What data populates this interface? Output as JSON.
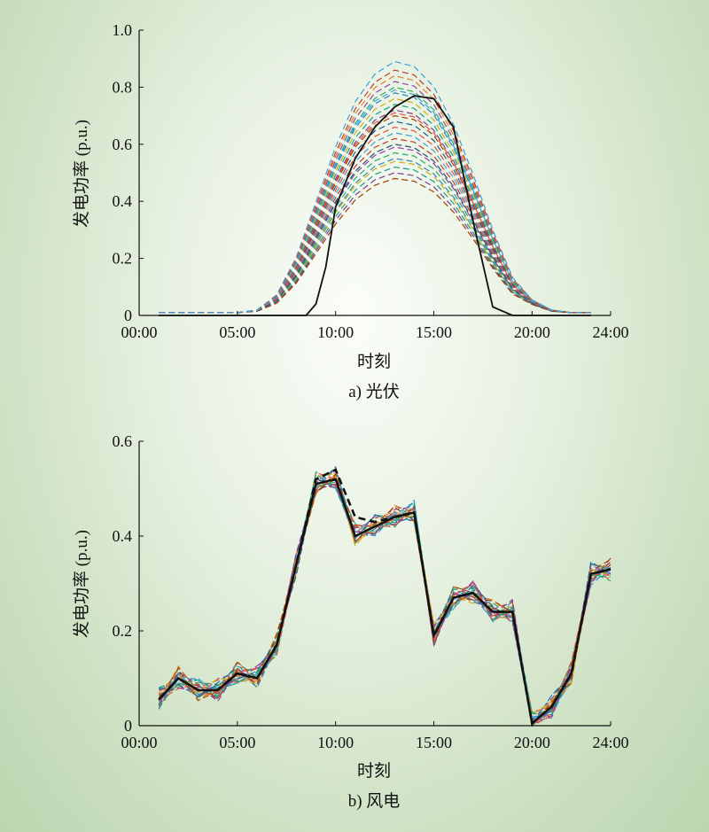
{
  "chart_data": [
    {
      "type": "line",
      "caption": "a) 光伏",
      "xlabel": "时刻",
      "ylabel": "发电功率 (p.u.)",
      "xlim": [
        0,
        24
      ],
      "ylim": [
        0,
        1.0
      ],
      "xticks": [
        0,
        5,
        10,
        15,
        20,
        24
      ],
      "xtick_labels": [
        "00:00",
        "05:00",
        "10:00",
        "15:00",
        "20:00",
        "24:00"
      ],
      "yticks": [
        0,
        0.2,
        0.4,
        0.6,
        0.8,
        1.0
      ],
      "ytick_labels": [
        "0",
        "0.2",
        "0.4",
        "0.6",
        "0.8",
        "1.0"
      ],
      "actual": {
        "x": [
          1,
          2,
          3,
          4,
          5,
          6,
          7,
          8,
          8.5,
          9,
          9.5,
          10,
          11,
          12,
          13,
          14,
          15,
          16,
          17,
          18,
          19,
          20,
          21,
          22,
          23
        ],
        "y": [
          0,
          0,
          0,
          0,
          0,
          0,
          0,
          0,
          0,
          0.04,
          0.17,
          0.38,
          0.55,
          0.66,
          0.73,
          0.77,
          0.76,
          0.66,
          0.33,
          0.03,
          0,
          0,
          0,
          0,
          0
        ]
      },
      "scenario_profile": {
        "x": [
          1,
          2,
          3,
          4,
          5,
          6,
          7,
          8,
          9,
          10,
          11,
          12,
          13,
          14,
          15,
          16,
          17,
          18,
          19,
          20,
          21,
          22,
          23
        ],
        "shape": [
          0,
          0,
          0,
          0,
          0,
          0.01,
          0.07,
          0.22,
          0.44,
          0.66,
          0.84,
          0.95,
          1.0,
          0.98,
          0.9,
          0.75,
          0.55,
          0.33,
          0.14,
          0.04,
          0.01,
          0,
          0
        ],
        "base": [
          0.01,
          0.01,
          0.01,
          0.01,
          0.01,
          0.01,
          0.01,
          0.01,
          0.01,
          0.01,
          0.01,
          0.01,
          0.01,
          0.01,
          0.01,
          0.01,
          0.01,
          0.01,
          0.01,
          0.02,
          0.01,
          0.01,
          0.01
        ],
        "peaks": [
          0.89,
          0.86,
          0.84,
          0.82,
          0.8,
          0.78,
          0.76,
          0.74,
          0.72,
          0.7,
          0.68,
          0.66,
          0.64,
          0.62,
          0.6,
          0.59,
          0.57,
          0.55,
          0.54,
          0.52,
          0.5,
          0.48,
          0.6,
          0.71,
          0.79
        ]
      }
    },
    {
      "type": "line",
      "caption": "b) 风电",
      "xlabel": "时刻",
      "ylabel": "发电功率 (p.u.)",
      "xlim": [
        0,
        24
      ],
      "ylim": [
        0,
        0.6
      ],
      "xticks": [
        0,
        5,
        10,
        15,
        20,
        24
      ],
      "xtick_labels": [
        "00:00",
        "05:00",
        "10:00",
        "15:00",
        "20:00",
        "24:00"
      ],
      "yticks": [
        0,
        0.2,
        0.4,
        0.6
      ],
      "ytick_labels": [
        "0",
        "0.2",
        "0.4",
        "0.6"
      ],
      "actual": {
        "x": [
          1,
          2,
          3,
          4,
          5,
          6,
          7,
          8,
          9,
          10,
          11,
          12,
          13,
          14,
          15,
          16,
          17,
          18,
          19,
          20,
          21,
          22,
          23,
          24
        ],
        "y": [
          0.055,
          0.1,
          0.075,
          0.075,
          0.11,
          0.1,
          0.17,
          0.34,
          0.51,
          0.52,
          0.4,
          0.42,
          0.44,
          0.45,
          0.19,
          0.27,
          0.28,
          0.24,
          0.24,
          0.005,
          0.04,
          0.11,
          0.32,
          0.33
        ]
      },
      "forecast_dashed": {
        "x": [
          1,
          2,
          3,
          4,
          5,
          6,
          7,
          8,
          9,
          10,
          11,
          12,
          13,
          14,
          15,
          16,
          17,
          18,
          19,
          20,
          21,
          22,
          23,
          24
        ],
        "y": [
          0.055,
          0.1,
          0.075,
          0.075,
          0.11,
          0.1,
          0.17,
          0.34,
          0.52,
          0.54,
          0.44,
          0.43,
          0.44,
          0.45,
          0.19,
          0.27,
          0.28,
          0.24,
          0.24,
          0.005,
          0.04,
          0.11,
          0.32,
          0.33
        ]
      }
    }
  ],
  "palette": [
    "#3aa0d8",
    "#c0392b",
    "#e67e22",
    "#8e44ad",
    "#27ae60",
    "#2e86c1",
    "#d4ac0d",
    "#16a085",
    "#7d3c98",
    "#a04000",
    "#1f618d",
    "#e74c3c"
  ]
}
